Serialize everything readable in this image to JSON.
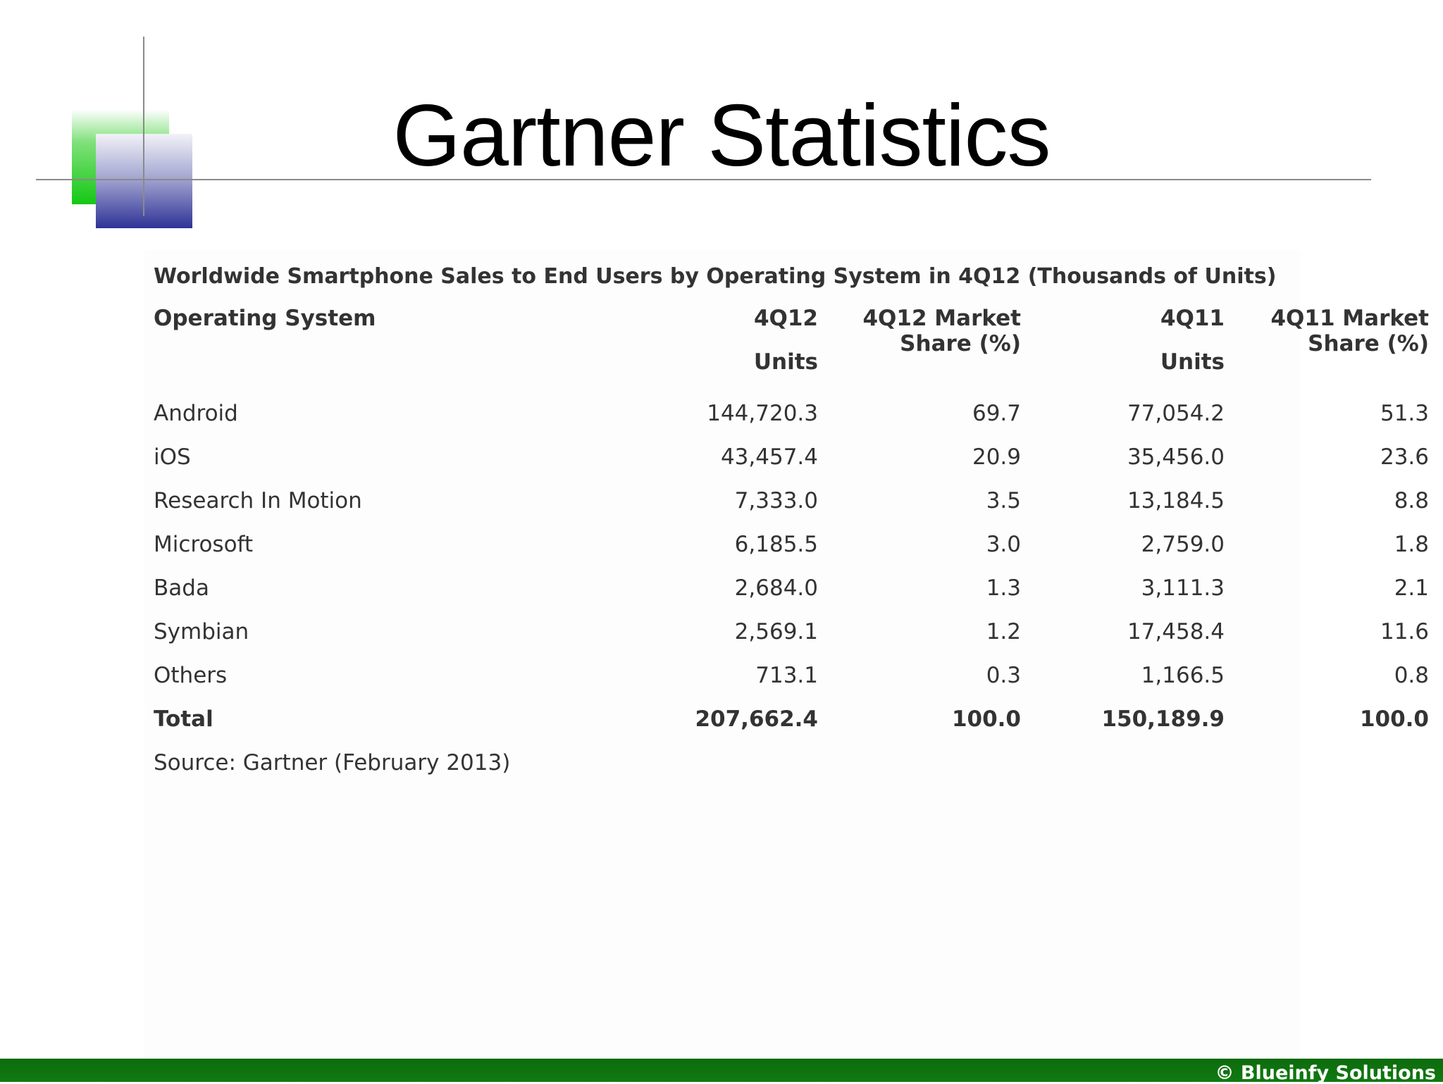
{
  "slide": {
    "title": "Gartner Statistics",
    "footer": "© Blueinfy Solutions"
  },
  "table": {
    "caption": "Worldwide Smartphone Sales to End Users by Operating System in 4Q12 (Thousands of Units)",
    "headers": {
      "col1": "Operating System",
      "col2_top": "4Q12",
      "col2_sub": "Units",
      "col3_line1": "4Q12 Market",
      "col3_line2": "Share (%)",
      "col4_top": "4Q11",
      "col4_sub": "Units",
      "col5_line1": "4Q11 Market",
      "col5_line2": "Share (%)"
    },
    "rows": [
      {
        "os": "Android",
        "units_4q12": "144,720.3",
        "share_4q12": "69.7",
        "units_4q11": "77,054.2",
        "share_4q11": "51.3"
      },
      {
        "os": "iOS",
        "units_4q12": "43,457.4",
        "share_4q12": "20.9",
        "units_4q11": "35,456.0",
        "share_4q11": "23.6"
      },
      {
        "os": "Research In Motion",
        "units_4q12": "7,333.0",
        "share_4q12": "3.5",
        "units_4q11": "13,184.5",
        "share_4q11": "8.8"
      },
      {
        "os": "Microsoft",
        "units_4q12": "6,185.5",
        "share_4q12": "3.0",
        "units_4q11": "2,759.0",
        "share_4q11": "1.8"
      },
      {
        "os": "Bada",
        "units_4q12": "2,684.0",
        "share_4q12": "1.3",
        "units_4q11": "3,111.3",
        "share_4q11": "2.1"
      },
      {
        "os": "Symbian",
        "units_4q12": "2,569.1",
        "share_4q12": "1.2",
        "units_4q11": "17,458.4",
        "share_4q11": "11.6"
      },
      {
        "os": "Others",
        "units_4q12": "713.1",
        "share_4q12": "0.3",
        "units_4q11": "1,166.5",
        "share_4q11": "0.8"
      }
    ],
    "total": {
      "os": "Total",
      "units_4q12": "207,662.4",
      "share_4q12": "100.0",
      "units_4q11": "150,189.9",
      "share_4q11": "100.0"
    },
    "source": "Source: Gartner (February 2013)"
  }
}
